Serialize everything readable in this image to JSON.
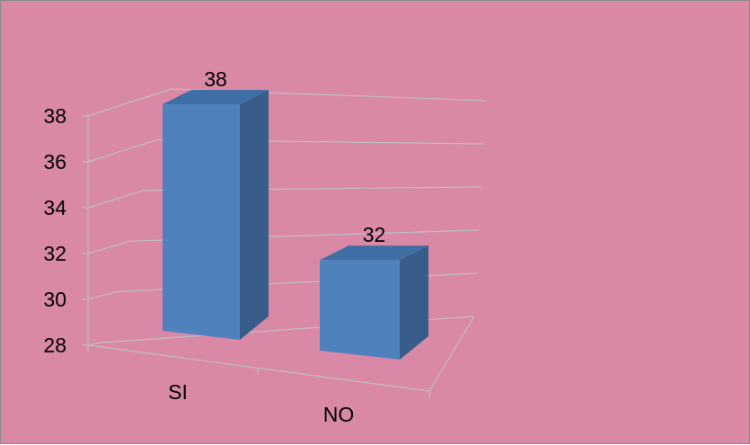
{
  "chart_data": {
    "type": "bar",
    "categories": [
      "SI",
      "NO"
    ],
    "values": [
      38,
      32
    ],
    "data_labels": [
      "38",
      "32"
    ],
    "yticks": [
      "28",
      "30",
      "32",
      "34",
      "36",
      "38"
    ],
    "ylim": [
      28,
      38
    ],
    "title": "",
    "xlabel": "",
    "ylabel": "",
    "grid": true,
    "legend": "none",
    "style": "3d-clustered-column"
  },
  "colors": {
    "background": "#d988a6",
    "bar_front": "#4f81bd",
    "bar_side": "#385d8a",
    "bar_top": "#3f6ea4",
    "gridline": "#bfbfbf"
  }
}
